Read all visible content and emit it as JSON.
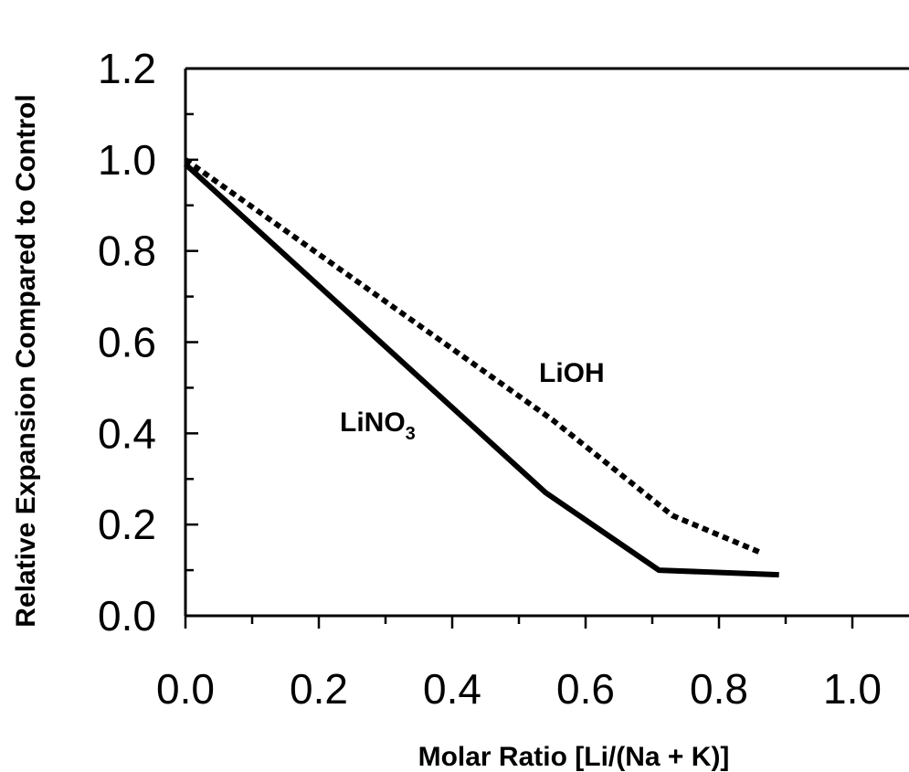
{
  "chart_data": {
    "type": "line",
    "xlabel": "Molar Ratio [Li/(Na + K)]",
    "ylabel": "Relative Expansion Compared to Control",
    "xlim": [
      0.0,
      1.0
    ],
    "ylim": [
      0.0,
      1.2
    ],
    "x_ticks": [
      "0.0",
      "0.2",
      "0.4",
      "0.6",
      "0.8",
      "1.0"
    ],
    "y_ticks": [
      "0.0",
      "0.2",
      "0.4",
      "0.6",
      "0.8",
      "1.0",
      "1.2"
    ],
    "x_minor_step": 0.1,
    "y_minor_step": 0.1,
    "grid": false,
    "top_border": true,
    "series": [
      {
        "name": "LiNO3",
        "label_main": "LiNO",
        "label_sub": "3",
        "style": "solid",
        "color": "#000000",
        "x": [
          0.0,
          0.54,
          0.71,
          0.89
        ],
        "y": [
          0.99,
          0.27,
          0.1,
          0.09
        ]
      },
      {
        "name": "LiOH",
        "label_main": "LiOH",
        "style": "dotted",
        "color": "#000000",
        "x": [
          0.0,
          0.55,
          0.73,
          0.86
        ],
        "y": [
          1.0,
          0.43,
          0.22,
          0.14
        ]
      }
    ]
  }
}
